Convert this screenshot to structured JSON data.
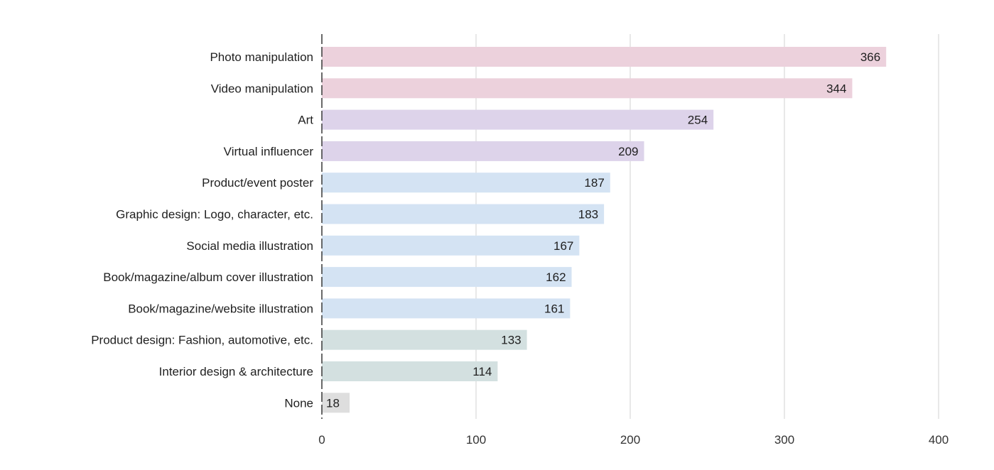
{
  "chart_data": {
    "type": "bar",
    "orientation": "horizontal",
    "title": "",
    "xlabel": "",
    "ylabel": "",
    "xlim": [
      0,
      400
    ],
    "x_ticks": [
      "0",
      "100",
      "200",
      "300",
      "400"
    ],
    "grid": true,
    "categories": [
      "Photo manipulation",
      "Video manipulation",
      "Art",
      "Virtual influencer",
      "Product/event poster",
      "Graphic design: Logo, character, etc.",
      "Social media illustration",
      "Book/magazine/album cover illustration",
      "Book/magazine/website illustration",
      "Product design: Fashion, automotive, etc.",
      "Interior design & architecture",
      "None"
    ],
    "values": [
      366,
      344,
      254,
      209,
      187,
      183,
      167,
      162,
      161,
      133,
      114,
      18
    ],
    "data_labels": [
      "366",
      "344",
      "254",
      "209",
      "187",
      "183",
      "167",
      "162",
      "161",
      "133",
      "114",
      "18"
    ],
    "bar_colors": [
      "#ecd1dc",
      "#ecd1dc",
      "#ddd3ea",
      "#ddd3ea",
      "#d4e3f3",
      "#d4e3f3",
      "#d4e3f3",
      "#d4e3f3",
      "#d4e3f3",
      "#d3e0e0",
      "#d3e0e0",
      "#dedede"
    ]
  }
}
